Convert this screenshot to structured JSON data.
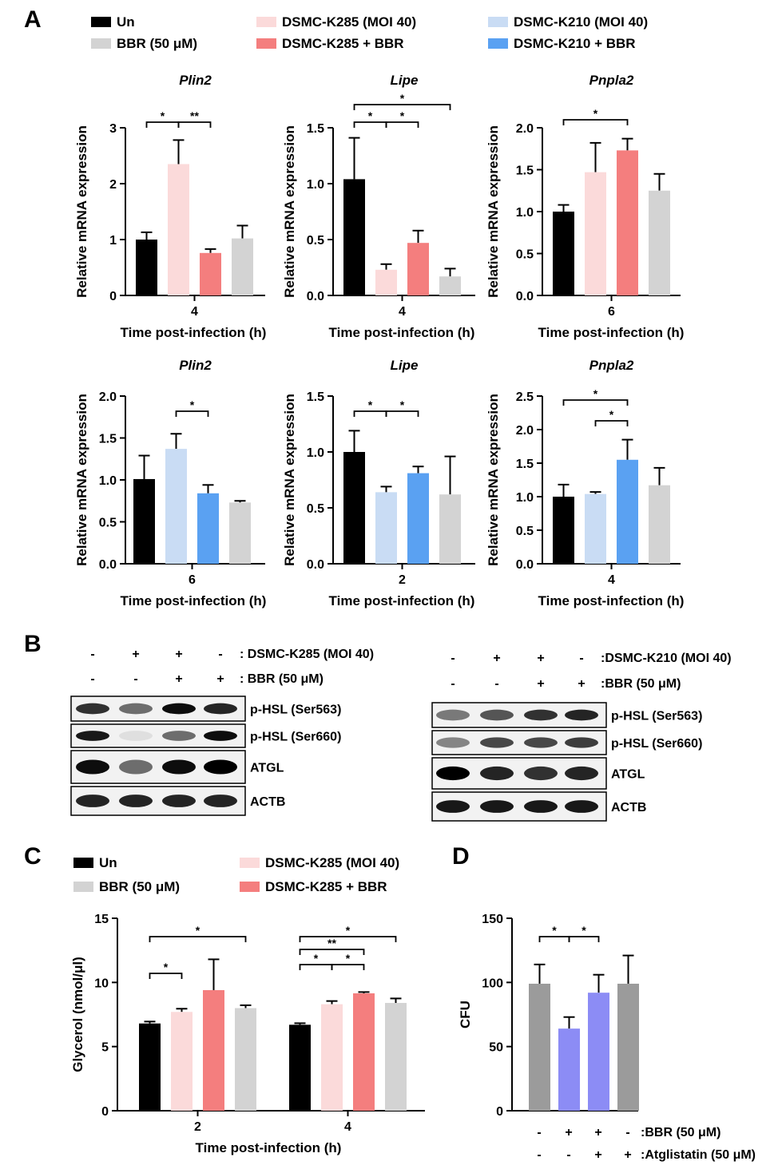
{
  "panel_labels": {
    "A": "A",
    "B": "B",
    "C": "C",
    "D": "D"
  },
  "colors": {
    "black": "#000000",
    "gray": "#d3d3d3",
    "pink_light": "#fbdada",
    "salmon": "#f47e7e",
    "blue_light": "#c9dcf4",
    "blue": "#5aa1f2",
    "gray_mid": "#9b9b9b",
    "periwinkle": "#8c8cf5"
  },
  "legend_a": [
    {
      "label": "Un",
      "color": "#000000"
    },
    {
      "label": "BBR (50 μM)",
      "color": "#d3d3d3"
    },
    {
      "label": "DSMC-K285 (MOI 40)",
      "color": "#fbdada"
    },
    {
      "label": "DSMC-K285 + BBR",
      "color": "#f47e7e"
    },
    {
      "label": "DSMC-K210 (MOI 40)",
      "color": "#c9dcf4"
    },
    {
      "label": "DSMC-K210 + BBR",
      "color": "#5aa1f2"
    }
  ],
  "legend_c": [
    {
      "label": "Un",
      "color": "#000000"
    },
    {
      "label": "BBR (50 μM)",
      "color": "#d3d3d3"
    },
    {
      "label": "DSMC-K285 (MOI 40)",
      "color": "#fbdada"
    },
    {
      "label": "DSMC-K285 + BBR",
      "color": "#f47e7e"
    }
  ],
  "chart_data": [
    {
      "id": "A1",
      "type": "bar",
      "title": "Plin2",
      "ylabel": "Relative mRNA expression",
      "xlabel": "Time post-infection (h)",
      "category": "4",
      "ylim": [
        0,
        3
      ],
      "yticks": [
        "0",
        "1",
        "2",
        "3"
      ],
      "values": [
        1.0,
        2.35,
        0.76,
        1.02
      ],
      "errors": [
        0.13,
        0.43,
        0.07,
        0.23
      ],
      "colors": [
        "#000000",
        "#fbdada",
        "#f47e7e",
        "#d3d3d3"
      ],
      "sig": [
        {
          "from": 0,
          "to": 1,
          "label": "*"
        },
        {
          "from": 1,
          "to": 2,
          "label": "**"
        }
      ]
    },
    {
      "id": "A2",
      "type": "bar",
      "title": "Lipe",
      "ylabel": "Relative mRNA expression",
      "xlabel": "Time post-infection (h)",
      "category": "4",
      "ylim": [
        0,
        1.5
      ],
      "yticks": [
        "0.0",
        "0.5",
        "1.0",
        "1.5"
      ],
      "values": [
        1.04,
        0.23,
        0.47,
        0.17
      ],
      "errors": [
        0.37,
        0.05,
        0.11,
        0.07
      ],
      "colors": [
        "#000000",
        "#fbdada",
        "#f47e7e",
        "#d3d3d3"
      ],
      "sig": [
        {
          "from": 0,
          "to": 1,
          "label": "*"
        },
        {
          "from": 1,
          "to": 2,
          "label": "*"
        },
        {
          "from": 0,
          "to": 3,
          "label": "*"
        }
      ]
    },
    {
      "id": "A3",
      "type": "bar",
      "title": "Pnpla2",
      "ylabel": "Relative mRNA expression",
      "xlabel": "Time post-infection (h)",
      "category": "6",
      "ylim": [
        0,
        2
      ],
      "yticks": [
        "0.0",
        "0.5",
        "1.0",
        "1.5",
        "2.0"
      ],
      "values": [
        1.0,
        1.47,
        1.73,
        1.25
      ],
      "errors": [
        0.08,
        0.35,
        0.14,
        0.2
      ],
      "colors": [
        "#000000",
        "#fbdada",
        "#f47e7e",
        "#d3d3d3"
      ],
      "sig": [
        {
          "from": 0,
          "to": 2,
          "label": "*"
        }
      ]
    },
    {
      "id": "A4",
      "type": "bar",
      "title": "Plin2",
      "ylabel": "Relative mRNA expression",
      "xlabel": "Time post-infection (h)",
      "category": "6",
      "ylim": [
        0,
        2
      ],
      "yticks": [
        "0.0",
        "0.5",
        "1.0",
        "1.5",
        "2.0"
      ],
      "values": [
        1.01,
        1.37,
        0.84,
        0.73
      ],
      "errors": [
        0.28,
        0.18,
        0.1,
        0.02
      ],
      "colors": [
        "#000000",
        "#c9dcf4",
        "#5aa1f2",
        "#d3d3d3"
      ],
      "sig": [
        {
          "from": 1,
          "to": 2,
          "label": "*"
        }
      ]
    },
    {
      "id": "A5",
      "type": "bar",
      "title": "Lipe",
      "ylabel": "Relative mRNA expression",
      "xlabel": "Time post-infection (h)",
      "category": "2",
      "ylim": [
        0,
        1.5
      ],
      "yticks": [
        "0.0",
        "0.5",
        "1.0",
        "1.5"
      ],
      "values": [
        1.0,
        0.64,
        0.81,
        0.62
      ],
      "errors": [
        0.19,
        0.05,
        0.06,
        0.34
      ],
      "colors": [
        "#000000",
        "#c9dcf4",
        "#5aa1f2",
        "#d3d3d3"
      ],
      "sig": [
        {
          "from": 0,
          "to": 1,
          "label": "*"
        },
        {
          "from": 1,
          "to": 2,
          "label": "*"
        }
      ]
    },
    {
      "id": "A6",
      "type": "bar",
      "title": "Pnpla2",
      "ylabel": "Relative mRNA expression",
      "xlabel": "Time post-infection (h)",
      "category": "4",
      "ylim": [
        0,
        2.5
      ],
      "yticks": [
        "0.0",
        "0.5",
        "1.0",
        "1.5",
        "2.0",
        "2.5"
      ],
      "values": [
        1.0,
        1.04,
        1.55,
        1.17
      ],
      "errors": [
        0.18,
        0.03,
        0.3,
        0.26
      ],
      "colors": [
        "#000000",
        "#c9dcf4",
        "#5aa1f2",
        "#d3d3d3"
      ],
      "sig": [
        {
          "from": 1,
          "to": 2,
          "label": "*"
        },
        {
          "from": 0,
          "to": 2,
          "label": "*"
        }
      ]
    },
    {
      "id": "C",
      "type": "bar",
      "ylabel": "Glycerol (nmol/μl)",
      "xlabel": "Time post-infection (h)",
      "categories": [
        "2",
        "4"
      ],
      "ylim": [
        0,
        15
      ],
      "yticks": [
        "0",
        "5",
        "10",
        "15"
      ],
      "series": [
        {
          "name": "Un",
          "values": [
            6.8,
            6.7
          ],
          "errors": [
            0.15,
            0.12
          ],
          "color": "#000000"
        },
        {
          "name": "DSMC-K285 (MOI 40)",
          "values": [
            7.7,
            8.3
          ],
          "errors": [
            0.25,
            0.25
          ],
          "color": "#fbdada"
        },
        {
          "name": "DSMC-K285 + BBR",
          "values": [
            9.4,
            9.15
          ],
          "errors": [
            2.4,
            0.1
          ],
          "color": "#f47e7e"
        },
        {
          "name": "BBR (50 μM)",
          "values": [
            8.0,
            8.4
          ],
          "errors": [
            0.22,
            0.35
          ],
          "color": "#d3d3d3"
        }
      ],
      "sig": [
        {
          "group": 0,
          "from": 0,
          "to": 1,
          "label": "*"
        },
        {
          "group": 0,
          "from": 0,
          "to": 3,
          "label": "*"
        },
        {
          "group": 1,
          "from": 0,
          "to": 1,
          "label": "*"
        },
        {
          "group": 1,
          "from": 1,
          "to": 2,
          "label": "*"
        },
        {
          "group": 1,
          "from": 0,
          "to": 2,
          "label": "**"
        },
        {
          "group": 1,
          "from": 0,
          "to": 3,
          "label": "*"
        }
      ]
    },
    {
      "id": "D",
      "type": "bar",
      "ylabel": "CFU",
      "ylim": [
        0,
        150
      ],
      "yticks": [
        "0",
        "50",
        "100",
        "150"
      ],
      "values": [
        99,
        64,
        92,
        99
      ],
      "errors": [
        15,
        9,
        14,
        22
      ],
      "colors": [
        "#9b9b9b",
        "#8c8cf5",
        "#8c8cf5",
        "#9b9b9b"
      ],
      "sig": [
        {
          "from": 0,
          "to": 1,
          "label": "*"
        },
        {
          "from": 1,
          "to": 2,
          "label": "*"
        }
      ],
      "treatments": [
        {
          "label": ":BBR (50 μM)",
          "marks": [
            "-",
            "+",
            "+",
            "-"
          ]
        },
        {
          "label": ":Atglistatin (50 μM)",
          "marks": [
            "-",
            "-",
            "+",
            "+"
          ]
        }
      ]
    }
  ],
  "blot_left": {
    "treatments": [
      {
        "label": ": DSMC-K285 (MOI 40)",
        "marks": [
          "-",
          "+",
          "+",
          "-"
        ]
      },
      {
        "label": ": BBR (50 μM)",
        "marks": [
          "-",
          "-",
          "+",
          "+"
        ]
      }
    ],
    "bands": [
      {
        "label": "p-HSL (Ser563)",
        "intensity": [
          0.8,
          0.55,
          0.95,
          0.85
        ]
      },
      {
        "label": "p-HSL (Ser660)",
        "intensity": [
          0.9,
          0.08,
          0.55,
          0.95
        ]
      },
      {
        "label": "ATGL",
        "intensity": [
          0.95,
          0.55,
          0.95,
          1.0
        ]
      },
      {
        "label": "ACTB",
        "intensity": [
          0.85,
          0.85,
          0.85,
          0.85
        ]
      }
    ]
  },
  "blot_right": {
    "treatments": [
      {
        "label": ":DSMC-K210 (MOI 40)",
        "marks": [
          "-",
          "+",
          "+",
          "-"
        ]
      },
      {
        "label": ":BBR (50 μM)",
        "marks": [
          "-",
          "-",
          "+",
          "+"
        ]
      }
    ],
    "bands": [
      {
        "label": "p-HSL (Ser563)",
        "intensity": [
          0.5,
          0.65,
          0.8,
          0.85
        ]
      },
      {
        "label": "p-HSL (Ser660)",
        "intensity": [
          0.45,
          0.7,
          0.7,
          0.75
        ]
      },
      {
        "label": "ATGL",
        "intensity": [
          1.0,
          0.85,
          0.8,
          0.85
        ]
      },
      {
        "label": "ACTB",
        "intensity": [
          0.9,
          0.9,
          0.9,
          0.9
        ]
      }
    ]
  }
}
